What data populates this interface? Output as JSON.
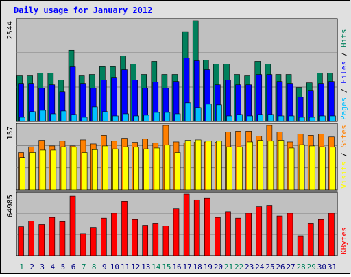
{
  "chart_data": [
    {
      "type": "bar",
      "title": "Daily usage for January 2012",
      "ylim": [
        0,
        2544
      ],
      "yticks": [
        2544
      ],
      "series": [
        {
          "name": "Hits",
          "color": "#00805c",
          "values": [
            1150,
            1150,
            1220,
            1220,
            1045,
            1795,
            1150,
            1185,
            1395,
            1395,
            1655,
            1445,
            1185,
            1515,
            1185,
            1185,
            2265,
            2544,
            1550,
            1445,
            1445,
            1185,
            1150,
            1515,
            1445,
            1185,
            1185,
            855,
            975,
            1220,
            1220
          ]
        },
        {
          "name": "Files",
          "color": "#0000ff",
          "values": [
            957,
            957,
            835,
            922,
            748,
            1392,
            957,
            835,
            1044,
            1096,
            1305,
            1044,
            835,
            992,
            835,
            1009,
            1601,
            1531,
            1305,
            922,
            1044,
            922,
            922,
            1183,
            1183,
            1009,
            957,
            609,
            783,
            957,
            1009
          ]
        },
        {
          "name": "Pages",
          "color": "#00c0ff",
          "values": [
            104,
            244,
            278,
            191,
            261,
            174,
            104,
            365,
            244,
            139,
            191,
            139,
            157,
            226,
            226,
            191,
            470,
            348,
            435,
            418,
            139,
            174,
            139,
            174,
            174,
            139,
            139,
            104,
            104,
            139,
            139
          ]
        }
      ]
    },
    {
      "type": "bar",
      "ylim": [
        0,
        157
      ],
      "yticks": [
        157
      ],
      "series": [
        {
          "name": "Sites",
          "color": "#ff8000",
          "values": [
            91,
            105,
            121,
            107,
            119,
            107,
            122,
            112,
            133,
            119,
            126,
            116,
            124,
            114,
            157,
            117,
            114,
            116,
            117,
            116,
            141,
            143,
            143,
            131,
            157,
            141,
            117,
            136,
            133,
            136,
            129
          ]
        },
        {
          "name": "Visits",
          "color": "#ffff00",
          "values": [
            79,
            91,
            97,
            97,
            105,
            104,
            91,
            98,
            107,
            100,
            105,
            104,
            100,
            102,
            109,
            91,
            121,
            122,
            119,
            119,
            105,
            105,
            117,
            121,
            119,
            121,
            102,
            110,
            107,
            105,
            104
          ]
        }
      ]
    },
    {
      "type": "bar",
      "ylim": [
        0,
        64985
      ],
      "yticks": [
        64985
      ],
      "categories": [
        "1",
        "2",
        "3",
        "4",
        "5",
        "6",
        "7",
        "8",
        "9",
        "10",
        "11",
        "12",
        "13",
        "14",
        "15",
        "16",
        "17",
        "18",
        "19",
        "20",
        "21",
        "22",
        "23",
        "24",
        "25",
        "26",
        "27",
        "28",
        "29",
        "30",
        "31"
      ],
      "category_colors": [
        "#00805c",
        "#000080",
        "#000080",
        "#000080",
        "#000080",
        "#000080",
        "#00805c",
        "#00805c",
        "#000080",
        "#000080",
        "#000080",
        "#000080",
        "#000080",
        "#00805c",
        "#00805c",
        "#000080",
        "#000080",
        "#000080",
        "#000080",
        "#000080",
        "#00805c",
        "#00805c",
        "#000080",
        "#000080",
        "#000080",
        "#000080",
        "#000080",
        "#00805c",
        "#00805c",
        "#000080",
        "#000080"
      ],
      "series": [
        {
          "name": "KBytes",
          "color": "#ff0000",
          "values": [
            30630,
            36600,
            32870,
            40340,
            35860,
            62750,
            23160,
            29880,
            39590,
            44820,
            57520,
            38100,
            32120,
            34360,
            31370,
            49300,
            64985,
            59010,
            60510,
            40340,
            46310,
            39590,
            44820,
            51540,
            53040,
            41830,
            44820,
            20920,
            34360,
            38100,
            44820
          ]
        }
      ]
    }
  ]
}
